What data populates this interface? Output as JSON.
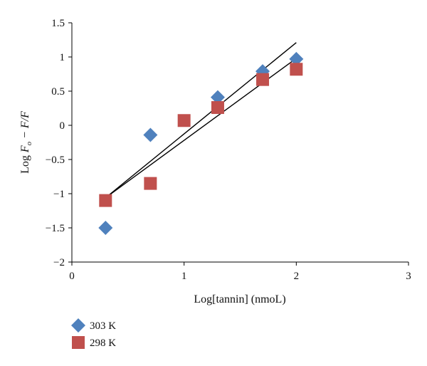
{
  "chart_data": {
    "type": "scatter",
    "xlabel": "Log[tannin] (nmoL)",
    "ylabel": {
      "prefix": "Log ",
      "F": "F",
      "sub": "o",
      "rest": " − F/F"
    },
    "xlim": [
      0,
      3
    ],
    "ylim": [
      -2,
      1.5
    ],
    "x_ticks": [
      "0",
      "1",
      "2",
      "3"
    ],
    "y_ticks": [
      "1.5",
      "1",
      "0.5",
      "0",
      "−0.5",
      "−1",
      "−1.5",
      "−2"
    ],
    "grid": false,
    "legend_position": "bottom-left",
    "series": [
      {
        "name": "303 K",
        "marker": "diamond",
        "color": "#4F81BD",
        "points": [
          {
            "x": 0.3,
            "y": -1.5
          },
          {
            "x": 0.7,
            "y": -0.14
          },
          {
            "x": 1.3,
            "y": 0.41
          },
          {
            "x": 1.7,
            "y": 0.79
          },
          {
            "x": 2.0,
            "y": 0.97
          }
        ],
        "trendline": {
          "x": [
            0.3,
            2.0
          ],
          "y": [
            -1.06,
            1.21
          ]
        }
      },
      {
        "name": "298 K",
        "marker": "square",
        "color": "#C0504D",
        "points": [
          {
            "x": 0.3,
            "y": -1.1
          },
          {
            "x": 0.7,
            "y": -0.85
          },
          {
            "x": 1.0,
            "y": 0.07
          },
          {
            "x": 1.3,
            "y": 0.26
          },
          {
            "x": 1.7,
            "y": 0.67
          },
          {
            "x": 2.0,
            "y": 0.82
          }
        ],
        "trendline": {
          "x": [
            0.3,
            2.0
          ],
          "y": [
            -1.06,
            0.98
          ]
        }
      }
    ]
  }
}
